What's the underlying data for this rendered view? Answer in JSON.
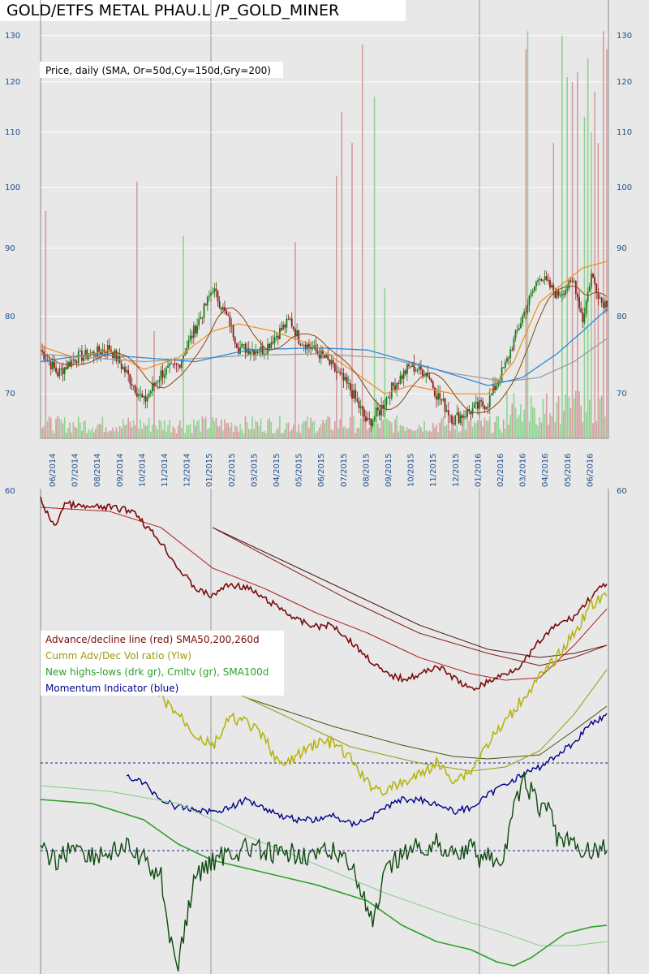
{
  "title": "GOLD/ETFS METAL PHAU.L /P_GOLD_MINER",
  "colors": {
    "background": "#e8e8e8",
    "axis_label": "#1e4f8c",
    "candle_up": "#1a7a1a",
    "candle_down": "#8b1a1a",
    "vol_up": "#7fcf7f",
    "vol_down": "#cf8f8f",
    "sma50": "#f08c1e",
    "sma150": "#2a8ad8",
    "sma200": "#999999",
    "ad_line": "#7a0a0a",
    "ad_sma50": "#b31d1d",
    "ad_sma200": "#8b1a1a",
    "ad_sma260": "#4a1a1a",
    "cum_vol": "#b5b511",
    "cum_vol_sma": "#9a9a10",
    "cum_vol_sma_dark": "#4d4d10",
    "momentum": "#00008b",
    "nhnl": "#0f4a0f",
    "nhnl_cum": "#2aa12a",
    "nhnl_sma": "#7fcf7f"
  },
  "chart_data": [
    {
      "type": "candlestick",
      "subtitle": "Price, daily (SMA, Or=50d,Cy=150d,Gry=200)",
      "ylim": [
        65,
        132
      ],
      "y_ticks": [
        70,
        80,
        90,
        100,
        110,
        120,
        130
      ],
      "x_ticks": [
        "06/2014",
        "07/2014",
        "08/2014",
        "09/2014",
        "10/2014",
        "11/2014",
        "12/2014",
        "01/2015",
        "02/2015",
        "03/2015",
        "04/2015",
        "05/2015",
        "06/2015",
        "07/2015",
        "08/2015",
        "09/2015",
        "10/2015",
        "11/2015",
        "12/2015",
        "01/2016",
        "02/2016",
        "03/2016",
        "04/2016",
        "05/2016",
        "06/2016"
      ],
      "close_keypoints": [
        [
          0,
          75.5
        ],
        [
          10,
          72.5
        ],
        [
          20,
          74.5
        ],
        [
          30,
          75
        ],
        [
          40,
          75.8
        ],
        [
          50,
          72.5
        ],
        [
          60,
          69
        ],
        [
          70,
          72.5
        ],
        [
          80,
          73.5
        ],
        [
          95,
          81
        ],
        [
          100,
          84
        ],
        [
          110,
          79
        ],
        [
          115,
          75.8
        ],
        [
          130,
          75.5
        ],
        [
          135,
          77
        ],
        [
          145,
          79.5
        ],
        [
          150,
          77
        ],
        [
          165,
          74.5
        ],
        [
          180,
          70.5
        ],
        [
          190,
          66.5
        ],
        [
          197,
          68
        ],
        [
          205,
          71
        ],
        [
          215,
          73.5
        ],
        [
          225,
          72.5
        ],
        [
          230,
          70
        ],
        [
          240,
          67
        ],
        [
          250,
          68
        ],
        [
          260,
          69
        ],
        [
          270,
          73.5
        ],
        [
          280,
          80
        ],
        [
          290,
          86
        ],
        [
          300,
          83
        ],
        [
          310,
          85
        ],
        [
          315,
          79.5
        ],
        [
          320,
          86
        ],
        [
          326,
          82
        ],
        [
          329,
          82
        ]
      ],
      "sma50_keypoints": [
        [
          0,
          76
        ],
        [
          20,
          74.5
        ],
        [
          40,
          75.5
        ],
        [
          60,
          73
        ],
        [
          80,
          74.5
        ],
        [
          100,
          78
        ],
        [
          115,
          79
        ],
        [
          135,
          78
        ],
        [
          160,
          76
        ],
        [
          180,
          73
        ],
        [
          200,
          70
        ],
        [
          215,
          71
        ],
        [
          240,
          70
        ],
        [
          260,
          70
        ],
        [
          275,
          74
        ],
        [
          290,
          82
        ],
        [
          305,
          85
        ],
        [
          315,
          87
        ],
        [
          329,
          88
        ]
      ],
      "sma150_keypoints": [
        [
          0,
          74
        ],
        [
          30,
          75
        ],
        [
          60,
          74.5
        ],
        [
          90,
          74
        ],
        [
          120,
          75.5
        ],
        [
          160,
          75.8
        ],
        [
          190,
          75.5
        ],
        [
          230,
          73
        ],
        [
          260,
          71
        ],
        [
          280,
          72
        ],
        [
          300,
          75
        ],
        [
          315,
          78
        ],
        [
          329,
          81
        ]
      ],
      "sma200_keypoints": [
        [
          0,
          75
        ],
        [
          60,
          74
        ],
        [
          120,
          74.8
        ],
        [
          160,
          75
        ],
        [
          200,
          74.5
        ],
        [
          240,
          72.5
        ],
        [
          270,
          71.5
        ],
        [
          290,
          72
        ],
        [
          310,
          74
        ],
        [
          329,
          77
        ]
      ],
      "volume_spikes": [
        [
          3,
          96
        ],
        [
          56,
          101
        ],
        [
          66,
          78
        ],
        [
          83,
          92
        ],
        [
          148,
          91
        ],
        [
          172,
          102
        ],
        [
          175,
          114
        ],
        [
          181,
          108
        ],
        [
          187,
          128
        ],
        [
          194,
          117
        ],
        [
          200,
          84
        ],
        [
          282,
          127
        ],
        [
          283,
          131
        ],
        [
          298,
          108
        ],
        [
          303,
          130
        ],
        [
          306,
          121
        ],
        [
          309,
          120
        ],
        [
          312,
          122
        ],
        [
          316,
          113
        ],
        [
          318,
          125
        ],
        [
          320,
          110
        ],
        [
          322,
          118
        ],
        [
          324,
          108
        ],
        [
          327,
          131
        ],
        [
          329,
          127
        ]
      ]
    },
    {
      "type": "line",
      "legend": [
        "Advance/decline line (red) SMA50,200,260d",
        "Cumm Adv/Dec Vol ratio (Ylw)",
        "New highs-lows (drk gr), Cmltv (gr), SMA100d",
        "Momentum Indicator (blue)"
      ],
      "y_ticks": [
        60
      ],
      "ad_line_keypoints": [
        [
          0,
          615
        ],
        [
          8,
          650
        ],
        [
          14,
          620
        ],
        [
          25,
          625
        ],
        [
          40,
          625
        ],
        [
          55,
          630
        ],
        [
          60,
          645
        ],
        [
          70,
          668
        ],
        [
          80,
          700
        ],
        [
          90,
          725
        ],
        [
          100,
          735
        ],
        [
          105,
          725
        ],
        [
          110,
          720
        ],
        [
          120,
          724
        ],
        [
          130,
          738
        ],
        [
          140,
          750
        ],
        [
          150,
          765
        ],
        [
          160,
          772
        ],
        [
          170,
          770
        ],
        [
          180,
          790
        ],
        [
          190,
          810
        ],
        [
          200,
          830
        ],
        [
          210,
          836
        ],
        [
          220,
          832
        ],
        [
          230,
          820
        ],
        [
          240,
          835
        ],
        [
          250,
          850
        ],
        [
          260,
          840
        ],
        [
          270,
          830
        ],
        [
          280,
          818
        ],
        [
          290,
          790
        ],
        [
          300,
          770
        ],
        [
          310,
          760
        ],
        [
          320,
          735
        ],
        [
          329,
          718
        ]
      ],
      "ad_sma50_keypoints": [
        [
          0,
          625
        ],
        [
          40,
          630
        ],
        [
          70,
          650
        ],
        [
          100,
          700
        ],
        [
          130,
          725
        ],
        [
          160,
          755
        ],
        [
          190,
          780
        ],
        [
          220,
          810
        ],
        [
          250,
          830
        ],
        [
          270,
          838
        ],
        [
          290,
          835
        ],
        [
          310,
          795
        ],
        [
          329,
          750
        ]
      ],
      "ad_sma200_keypoints": [
        [
          100,
          650
        ],
        [
          140,
          695
        ],
        [
          180,
          740
        ],
        [
          220,
          780
        ],
        [
          260,
          805
        ],
        [
          290,
          820
        ],
        [
          310,
          810
        ],
        [
          329,
          795
        ]
      ],
      "ad_sma260_keypoints": [
        [
          100,
          650
        ],
        [
          140,
          690
        ],
        [
          180,
          730
        ],
        [
          220,
          770
        ],
        [
          260,
          800
        ],
        [
          290,
          810
        ],
        [
          310,
          805
        ],
        [
          329,
          795
        ]
      ],
      "cum_vol_keypoints": [
        [
          60,
          800
        ],
        [
          65,
          830
        ],
        [
          70,
          860
        ],
        [
          80,
          880
        ],
        [
          90,
          905
        ],
        [
          100,
          920
        ],
        [
          110,
          885
        ],
        [
          120,
          890
        ],
        [
          130,
          910
        ],
        [
          140,
          945
        ],
        [
          150,
          930
        ],
        [
          160,
          915
        ],
        [
          170,
          915
        ],
        [
          180,
          935
        ],
        [
          190,
          965
        ],
        [
          200,
          975
        ],
        [
          210,
          965
        ],
        [
          220,
          955
        ],
        [
          230,
          940
        ],
        [
          240,
          960
        ],
        [
          250,
          950
        ],
        [
          260,
          915
        ],
        [
          270,
          890
        ],
        [
          280,
          860
        ],
        [
          290,
          835
        ],
        [
          300,
          810
        ],
        [
          310,
          780
        ],
        [
          320,
          745
        ],
        [
          329,
          735
        ]
      ],
      "cum_vol_sma_keypoints": [
        [
          100,
          840
        ],
        [
          140,
          880
        ],
        [
          180,
          920
        ],
        [
          220,
          940
        ],
        [
          250,
          950
        ],
        [
          270,
          945
        ],
        [
          290,
          925
        ],
        [
          310,
          880
        ],
        [
          329,
          825
        ]
      ],
      "cum_vol_sma_dark_keypoints": [
        [
          120,
          860
        ],
        [
          170,
          895
        ],
        [
          210,
          918
        ],
        [
          240,
          932
        ],
        [
          260,
          935
        ],
        [
          290,
          930
        ],
        [
          310,
          900
        ],
        [
          329,
          870
        ]
      ],
      "momentum_keypoints": [
        [
          50,
          955
        ],
        [
          60,
          965
        ],
        [
          70,
          985
        ],
        [
          80,
          995
        ],
        [
          100,
          1000
        ],
        [
          110,
          995
        ],
        [
          120,
          985
        ],
        [
          140,
          1005
        ],
        [
          150,
          1010
        ],
        [
          160,
          1010
        ],
        [
          170,
          1005
        ],
        [
          180,
          1015
        ],
        [
          190,
          1010
        ],
        [
          200,
          995
        ],
        [
          210,
          985
        ],
        [
          220,
          985
        ],
        [
          230,
          990
        ],
        [
          240,
          1000
        ],
        [
          250,
          995
        ],
        [
          260,
          980
        ],
        [
          270,
          965
        ],
        [
          280,
          955
        ],
        [
          290,
          945
        ],
        [
          300,
          930
        ],
        [
          310,
          915
        ],
        [
          320,
          890
        ],
        [
          329,
          882
        ]
      ],
      "nhnl_keypoints": [
        [
          0,
          1050
        ],
        [
          10,
          1060
        ],
        [
          20,
          1040
        ],
        [
          30,
          1055
        ],
        [
          40,
          1050
        ],
        [
          50,
          1045
        ],
        [
          60,
          1060
        ],
        [
          70,
          1080
        ],
        [
          75,
          1150
        ],
        [
          80,
          1190
        ],
        [
          85,
          1130
        ],
        [
          90,
          1080
        ],
        [
          100,
          1060
        ],
        [
          110,
          1050
        ],
        [
          120,
          1045
        ],
        [
          130,
          1050
        ],
        [
          140,
          1055
        ],
        [
          150,
          1050
        ],
        [
          160,
          1055
        ],
        [
          170,
          1050
        ],
        [
          180,
          1060
        ],
        [
          188,
          1110
        ],
        [
          193,
          1140
        ],
        [
          200,
          1080
        ],
        [
          210,
          1050
        ],
        [
          220,
          1045
        ],
        [
          230,
          1040
        ],
        [
          240,
          1050
        ],
        [
          250,
          1045
        ],
        [
          255,
          1055
        ],
        [
          260,
          1050
        ],
        [
          265,
          1070
        ],
        [
          270,
          1050
        ],
        [
          275,
          1000
        ],
        [
          280,
          960
        ],
        [
          285,
          975
        ],
        [
          290,
          1000
        ],
        [
          295,
          990
        ],
        [
          300,
          1030
        ],
        [
          310,
          1045
        ],
        [
          320,
          1048
        ],
        [
          329,
          1045
        ]
      ],
      "nhnl_cum_keypoints": [
        [
          0,
          985
        ],
        [
          30,
          990
        ],
        [
          60,
          1010
        ],
        [
          80,
          1040
        ],
        [
          100,
          1060
        ],
        [
          130,
          1075
        ],
        [
          160,
          1090
        ],
        [
          190,
          1110
        ],
        [
          210,
          1140
        ],
        [
          230,
          1160
        ],
        [
          250,
          1170
        ],
        [
          265,
          1185
        ],
        [
          275,
          1190
        ],
        [
          285,
          1180
        ],
        [
          295,
          1165
        ],
        [
          305,
          1150
        ],
        [
          320,
          1142
        ],
        [
          329,
          1140
        ]
      ],
      "nhnl_sma_keypoints": [
        [
          0,
          968
        ],
        [
          40,
          975
        ],
        [
          80,
          990
        ],
        [
          120,
          1030
        ],
        [
          160,
          1065
        ],
        [
          200,
          1100
        ],
        [
          240,
          1130
        ],
        [
          270,
          1150
        ],
        [
          290,
          1165
        ],
        [
          310,
          1165
        ],
        [
          329,
          1160
        ]
      ],
      "hlines": [
        940,
        1048
      ]
    }
  ]
}
